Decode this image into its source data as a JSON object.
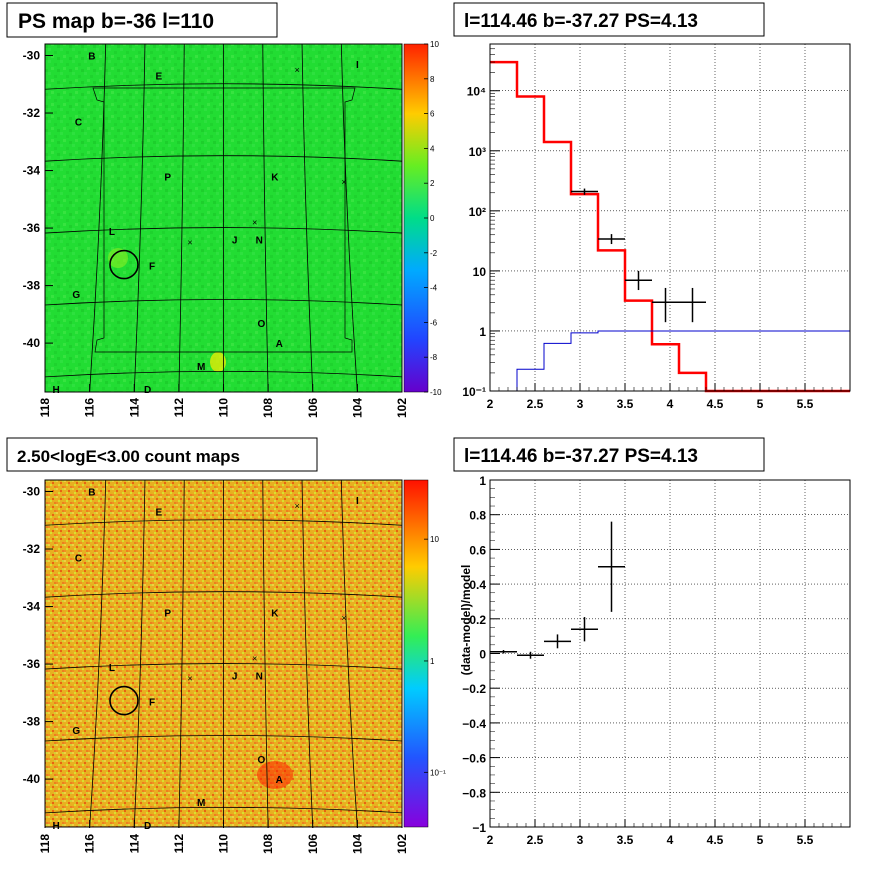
{
  "panels": {
    "ps_map": {
      "title": "PS map b=-36 l=110",
      "y_ticks": [
        "-30",
        "-32",
        "-34",
        "-36",
        "-38",
        "-40"
      ],
      "x_ticks": [
        "118",
        "116",
        "114",
        "112",
        "110",
        "108",
        "106",
        "104",
        "102"
      ],
      "colorbar_ticks": [
        "10",
        "8",
        "6",
        "4",
        "2",
        "0",
        "-2",
        "-4",
        "-6",
        "-8",
        "-10"
      ],
      "base_color": "#22dd33"
    },
    "count_map": {
      "title": "2.50<logE<3.00 count maps",
      "y_ticks": [
        "-30",
        "-32",
        "-34",
        "-36",
        "-38",
        "-40"
      ],
      "x_ticks": [
        "118",
        "116",
        "114",
        "112",
        "110",
        "108",
        "106",
        "104",
        "102"
      ],
      "colorbar_ticks": [
        "10",
        "1",
        "10⁻¹"
      ],
      "base_color": "#e8b020"
    },
    "spectrum": {
      "title": "l=114.46 b=-37.27 PS=4.13"
    },
    "residual": {
      "title": "l=114.46 b=-37.27 PS=4.13"
    }
  },
  "sources": [
    {
      "label": "B",
      "l": 115.9,
      "b": -30.0
    },
    {
      "label": "E",
      "l": 112.9,
      "b": -30.7
    },
    {
      "label": "I",
      "l": 104.0,
      "b": -30.3
    },
    {
      "label": "C",
      "l": 116.5,
      "b": -32.3
    },
    {
      "label": "P",
      "l": 112.5,
      "b": -34.2
    },
    {
      "label": "K",
      "l": 107.7,
      "b": -34.2
    },
    {
      "label": "L",
      "l": 115.0,
      "b": -36.1
    },
    {
      "label": "J",
      "l": 109.5,
      "b": -36.4
    },
    {
      "label": "N",
      "l": 108.4,
      "b": -36.4
    },
    {
      "label": "F",
      "l": 113.2,
      "b": -37.3
    },
    {
      "label": "G",
      "l": 116.6,
      "b": -38.3
    },
    {
      "label": "O",
      "l": 108.3,
      "b": -39.3
    },
    {
      "label": "A",
      "l": 107.5,
      "b": -40.0
    },
    {
      "label": "M",
      "l": 111.0,
      "b": -40.8
    },
    {
      "label": "H",
      "l": 117.5,
      "b": -41.6
    },
    {
      "label": "D",
      "l": 113.4,
      "b": -41.6
    }
  ],
  "crosses": [
    {
      "l": 106.7,
      "b": -30.5
    },
    {
      "l": 104.6,
      "b": -34.4
    },
    {
      "l": 108.6,
      "b": -35.8
    },
    {
      "l": 111.5,
      "b": -36.5
    }
  ],
  "target_circle": {
    "l": 114.46,
    "b": -37.27
  },
  "chart_data": [
    {
      "type": "line",
      "panel": "spectrum",
      "title": "l=114.46 b=-37.27 PS=4.13",
      "xlim": [
        2,
        6
      ],
      "ylim": [
        0.1,
        60000
      ],
      "yscale": "log",
      "x_ticks": [
        "2",
        "2.5",
        "3",
        "3.5",
        "4",
        "4.5",
        "5",
        "5.5"
      ],
      "y_ticks": [
        "10⁻¹",
        "1",
        "10",
        "10²",
        "10³",
        "10⁴"
      ],
      "grid": true,
      "bin_edges": [
        2.0,
        2.3,
        2.6,
        2.9,
        3.2,
        3.5,
        3.8,
        4.1,
        4.4,
        4.7,
        5.0,
        5.3,
        5.6,
        5.9,
        6.0
      ],
      "series": [
        {
          "color": "#ff0000",
          "values": [
            30000,
            8000,
            1400,
            190,
            22,
            3.2,
            0.6,
            0.2,
            0.1,
            0.1,
            0.1,
            0.1,
            0.1,
            0.1
          ]
        },
        {
          "color": "#0000cc",
          "values": [
            0.08,
            0.23,
            0.62,
            0.93,
            1.0,
            1.0,
            1.0,
            1.0,
            1.0,
            1.0,
            1.0,
            1.0,
            1.0,
            1.0
          ]
        }
      ],
      "data_points": [
        {
          "x": 3.05,
          "xerr": 0.15,
          "y": 210,
          "ylo": 185,
          "yhi": 235
        },
        {
          "x": 3.35,
          "xerr": 0.15,
          "y": 34,
          "ylo": 28,
          "yhi": 41
        },
        {
          "x": 3.65,
          "xerr": 0.15,
          "y": 7,
          "ylo": 4.8,
          "yhi": 10
        },
        {
          "x": 3.95,
          "xerr": 0.15,
          "y": 3,
          "ylo": 1.4,
          "yhi": 5.2
        },
        {
          "x": 4.25,
          "xerr": 0.15,
          "y": 3,
          "ylo": 1.4,
          "yhi": 5.2
        }
      ]
    },
    {
      "type": "scatter",
      "panel": "residual",
      "title": "l=114.46 b=-37.27 PS=4.13",
      "ylabel": "(data-model)/model",
      "xlim": [
        2,
        6
      ],
      "ylim": [
        -1,
        1
      ],
      "x_ticks": [
        "2",
        "2.5",
        "3",
        "3.5",
        "4",
        "4.5",
        "5",
        "5.5"
      ],
      "y_ticks": [
        "1",
        "0.8",
        "0.6",
        "0.4",
        "0.2",
        "0",
        "−0.2",
        "−0.4",
        "−0.6",
        "−0.8",
        "−1"
      ],
      "grid": true,
      "points": [
        {
          "x": 2.15,
          "xerr": 0.15,
          "y": 0.01,
          "yerr": 0.01
        },
        {
          "x": 2.45,
          "xerr": 0.15,
          "y": -0.01,
          "yerr": 0.02
        },
        {
          "x": 2.75,
          "xerr": 0.15,
          "y": 0.07,
          "yerr": 0.04
        },
        {
          "x": 3.05,
          "xerr": 0.15,
          "y": 0.14,
          "yerr": 0.07
        },
        {
          "x": 3.35,
          "xerr": 0.15,
          "y": 0.5,
          "yerr": 0.26
        }
      ]
    }
  ]
}
